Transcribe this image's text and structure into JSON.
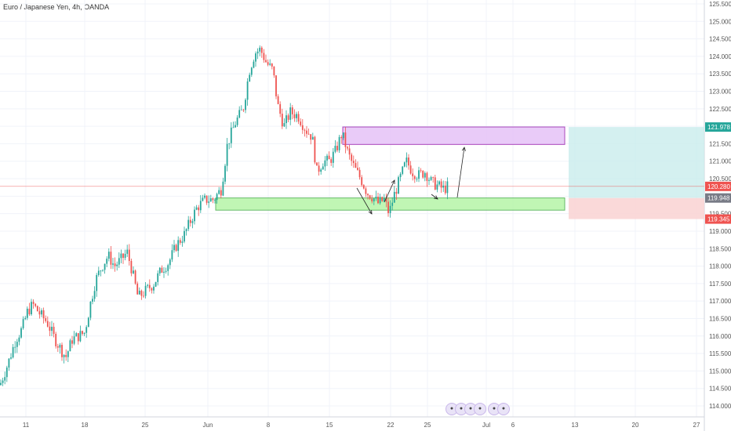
{
  "title": "Euro / Japanese Yen, 4h, OANDA",
  "colors": {
    "up": "#26a69a",
    "down": "#ef5350",
    "grid": "#f0f3fa",
    "demand_fill": "#b6f5a8",
    "demand_stroke": "#4caf50",
    "supply_fill": "#e6c2f7",
    "supply_stroke": "#9c27b0",
    "target_fill": "#c9ecec",
    "stop_fill": "#f9d5d5",
    "current_line": "#ef5350"
  },
  "chart_data": {
    "type": "candlestick",
    "y_range": [
      113.8,
      125.6
    ],
    "y_ticks": [
      "114.000",
      "114.500",
      "115.000",
      "115.500",
      "116.000",
      "116.500",
      "117.000",
      "117.500",
      "118.000",
      "118.500",
      "119.000",
      "119.500",
      "120.000",
      "120.500",
      "121.000",
      "121.500",
      "122.000",
      "122.500",
      "123.000",
      "123.500",
      "124.000",
      "124.500",
      "125.000",
      "125.500"
    ],
    "x_ticks": [
      "11",
      "18",
      "25",
      "Jun",
      "8",
      "15",
      "22",
      "25",
      "Jul",
      "6",
      "13",
      "20",
      "27"
    ],
    "price_labels": [
      {
        "text": "121.978",
        "value": 121.978,
        "color": "#26a69a"
      },
      {
        "text": "120.280",
        "value": 120.28,
        "color": "#ef5350"
      },
      {
        "text": "119.948",
        "value": 119.948,
        "color": "#787b86"
      },
      {
        "text": "119.345",
        "value": 119.345,
        "color": "#ef5350"
      }
    ],
    "zones": [
      {
        "name": "demand",
        "top": 119.95,
        "bottom": 119.6
      },
      {
        "name": "supply",
        "top": 121.98,
        "bottom": 121.48
      }
    ],
    "position": {
      "entry": 119.948,
      "target": 121.978,
      "stop": 119.345
    },
    "current_price": 120.28,
    "path": [
      [
        0,
        114.6
      ],
      [
        10,
        115.2
      ],
      [
        20,
        115.9
      ],
      [
        28,
        116.2
      ],
      [
        35,
        116.7
      ],
      [
        42,
        116.9
      ],
      [
        52,
        116.6
      ],
      [
        60,
        116.4
      ],
      [
        68,
        116.0
      ],
      [
        78,
        115.6
      ],
      [
        84,
        115.4
      ],
      [
        92,
        115.9
      ],
      [
        100,
        116.0
      ],
      [
        108,
        116.1
      ],
      [
        115,
        116.9
      ],
      [
        122,
        117.6
      ],
      [
        130,
        118.0
      ],
      [
        138,
        118.3
      ],
      [
        146,
        118.0
      ],
      [
        155,
        118.2
      ],
      [
        162,
        118.4
      ],
      [
        168,
        117.9
      ],
      [
        176,
        117.1
      ],
      [
        186,
        117.3
      ],
      [
        196,
        117.5
      ],
      [
        206,
        117.9
      ],
      [
        215,
        118.1
      ],
      [
        225,
        118.6
      ],
      [
        235,
        118.9
      ],
      [
        245,
        119.4
      ],
      [
        252,
        119.7
      ],
      [
        262,
        119.9
      ],
      [
        272,
        119.9
      ],
      [
        282,
        120.2
      ],
      [
        290,
        121.5
      ],
      [
        300,
        122.1
      ],
      [
        310,
        122.5
      ],
      [
        318,
        123.6
      ],
      [
        325,
        124.1
      ],
      [
        332,
        124.2
      ],
      [
        340,
        123.8
      ],
      [
        348,
        123.6
      ],
      [
        354,
        122.6
      ],
      [
        362,
        122.0
      ],
      [
        370,
        122.4
      ],
      [
        380,
        122.3
      ],
      [
        390,
        121.9
      ],
      [
        398,
        121.7
      ],
      [
        404,
        120.7
      ],
      [
        412,
        121.0
      ],
      [
        420,
        121.0
      ],
      [
        428,
        121.3
      ],
      [
        436,
        121.8
      ],
      [
        444,
        121.2
      ],
      [
        452,
        120.8
      ],
      [
        460,
        120.5
      ],
      [
        468,
        120.1
      ],
      [
        474,
        120.0
      ],
      [
        482,
        119.8
      ],
      [
        490,
        119.9
      ],
      [
        496,
        119.5
      ],
      [
        502,
        120.0
      ],
      [
        510,
        120.5
      ],
      [
        518,
        121.0
      ],
      [
        526,
        120.7
      ],
      [
        534,
        120.6
      ],
      [
        542,
        120.7
      ],
      [
        550,
        120.4
      ],
      [
        558,
        120.3
      ],
      [
        566,
        120.2
      ],
      [
        572,
        120.3
      ]
    ]
  }
}
